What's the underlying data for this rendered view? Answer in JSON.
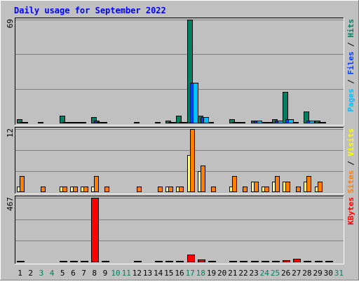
{
  "chart_data": {
    "type": "bar",
    "title": "Daily usage for September 2022",
    "days": [
      "1",
      "2",
      "3",
      "4",
      "5",
      "6",
      "7",
      "8",
      "9",
      "10",
      "11",
      "12",
      "13",
      "14",
      "15",
      "16",
      "17",
      "18",
      "19",
      "20",
      "21",
      "22",
      "23",
      "24",
      "25",
      "26",
      "27",
      "28",
      "29",
      "30",
      "31"
    ],
    "weekend_days": [
      "3",
      "4",
      "10",
      "11",
      "17",
      "18",
      "24",
      "25",
      "31"
    ],
    "panels": [
      {
        "id": "hits",
        "max_label": "69",
        "ymax": 69,
        "legend": [
          {
            "text": "Pages",
            "color": "#00c0ff"
          },
          {
            "text": " / ",
            "color": "#000000"
          },
          {
            "text": "Files",
            "color": "#0040ff"
          },
          {
            "text": " / ",
            "color": "#000000"
          },
          {
            "text": "Hits",
            "color": "#008060"
          }
        ],
        "series": [
          {
            "name": "Hits",
            "color": "#008060",
            "values": [
              3,
              0,
              1,
              0,
              5,
              1,
              1,
              4,
              1,
              0,
              0,
              1,
              0,
              1,
              2,
              5,
              69,
              5,
              1,
              0,
              3,
              1,
              2,
              1,
              3,
              21,
              1,
              8,
              2,
              0,
              0
            ]
          },
          {
            "name": "Files",
            "color": "#0040ff",
            "values": [
              1,
              0,
              0,
              0,
              1,
              1,
              0,
              2,
              0,
              0,
              0,
              0,
              0,
              0,
              1,
              1,
              27,
              4,
              0,
              0,
              1,
              0,
              2,
              0,
              2,
              3,
              0,
              2,
              1,
              0,
              0
            ]
          },
          {
            "name": "Pages",
            "color": "#00c0ff",
            "values": [
              1,
              0,
              0,
              0,
              1,
              1,
              0,
              1,
              0,
              0,
              0,
              0,
              0,
              0,
              1,
              1,
              27,
              4,
              0,
              0,
              1,
              0,
              2,
              1,
              2,
              3,
              0,
              2,
              1,
              0,
              0
            ]
          }
        ]
      },
      {
        "id": "visits",
        "max_label": "12",
        "ymax": 12,
        "legend": [
          {
            "text": "Sites",
            "color": "#ff8000"
          },
          {
            "text": " / ",
            "color": "#000000"
          },
          {
            "text": "Visits",
            "color": "#ffff00"
          }
        ],
        "series": [
          {
            "name": "Visits",
            "color": "#ffff80",
            "values": [
              1,
              0,
              0,
              0,
              1,
              1,
              1,
              1,
              0,
              0,
              0,
              0,
              0,
              0,
              1,
              1,
              7,
              4,
              0,
              0,
              1,
              0,
              2,
              1,
              2,
              2,
              0,
              2,
              1,
              0,
              0
            ]
          },
          {
            "name": "Sites",
            "color": "#ff8000",
            "values": [
              3,
              0,
              1,
              0,
              1,
              1,
              1,
              3,
              1,
              0,
              0,
              1,
              0,
              1,
              1,
              1,
              12,
              5,
              1,
              0,
              3,
              1,
              2,
              1,
              3,
              2,
              1,
              3,
              2,
              0,
              0
            ]
          }
        ]
      },
      {
        "id": "kbytes",
        "max_label": "467",
        "ymax": 467,
        "legend": [
          {
            "text": "KBytes",
            "color": "#ff0000"
          }
        ],
        "series": [
          {
            "name": "KBytes",
            "color": "#ff0000",
            "values": [
              5,
              0,
              0,
              0,
              5,
              5,
              5,
              467,
              5,
              0,
              0,
              5,
              0,
              5,
              5,
              5,
              55,
              18,
              5,
              0,
              5,
              5,
              8,
              10,
              6,
              14,
              24,
              10,
              8,
              5,
              0
            ]
          }
        ]
      }
    ]
  }
}
